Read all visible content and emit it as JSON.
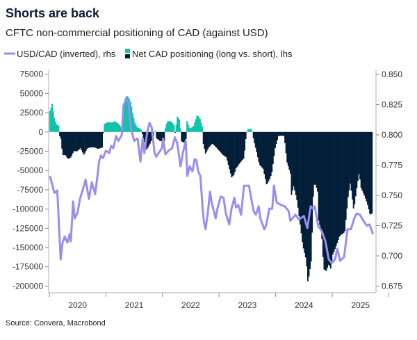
{
  "chart_data": {
    "type": "bar+line",
    "title": "Shorts are back",
    "subtitle": "CFTC non-commercial positioning of CAD (against USD)",
    "source": "Source: Convera, Macrobond",
    "x_axis": {
      "type": "time (decimal year)",
      "range": [
        2020.0,
        2025.8
      ],
      "tick_labels": [
        "2020",
        "2021",
        "2022",
        "2023",
        "2024",
        "2025"
      ]
    },
    "y_left": {
      "range": [
        -200000,
        75000
      ],
      "ticks": [
        75000,
        50000,
        25000,
        0,
        -25000,
        -50000,
        -75000,
        -100000,
        -125000,
        -150000,
        -175000,
        -200000
      ],
      "tick_labels": [
        "75000",
        "50000",
        "25000",
        "0",
        "-25000",
        "-50000",
        "-75000",
        "-100000",
        "-125000",
        "-150000",
        "-175000",
        "-200000"
      ]
    },
    "y_right": {
      "range": [
        0.675,
        0.85
      ],
      "ticks": [
        0.85,
        0.825,
        0.8,
        0.775,
        0.75,
        0.725,
        0.7,
        0.675
      ],
      "tick_labels": [
        "0.850",
        "0.825",
        "0.800",
        "0.775",
        "0.750",
        "0.725",
        "0.700",
        "0.675"
      ],
      "inverted_quantity": true
    },
    "grid": false,
    "legend_position": "top-left",
    "series": [
      {
        "name": "USD/CAD (inverted), rhs",
        "type": "line",
        "axis": "right",
        "color": "#9b8cf0",
        "points": [
          [
            2020.01,
            0.766
          ],
          [
            2020.09,
            0.752
          ],
          [
            2020.14,
            0.754
          ],
          [
            2020.15,
            0.745
          ],
          [
            2020.2,
            0.697
          ],
          [
            2020.23,
            0.71
          ],
          [
            2020.27,
            0.716
          ],
          [
            2020.32,
            0.711
          ],
          [
            2020.36,
            0.718
          ],
          [
            2020.38,
            0.712
          ],
          [
            2020.42,
            0.745
          ],
          [
            2020.45,
            0.731
          ],
          [
            2020.5,
            0.736
          ],
          [
            2020.54,
            0.747
          ],
          [
            2020.6,
            0.756
          ],
          [
            2020.64,
            0.763
          ],
          [
            2020.7,
            0.747
          ],
          [
            2020.75,
            0.761
          ],
          [
            2020.81,
            0.751
          ],
          [
            2020.85,
            0.766
          ],
          [
            2020.88,
            0.778
          ],
          [
            2020.91,
            0.783
          ],
          [
            2020.95,
            0.781
          ],
          [
            2021.0,
            0.787
          ],
          [
            2021.06,
            0.785
          ],
          [
            2021.09,
            0.791
          ],
          [
            2021.13,
            0.789
          ],
          [
            2021.18,
            0.799
          ],
          [
            2021.22,
            0.795
          ],
          [
            2021.28,
            0.8
          ],
          [
            2021.31,
            0.824
          ],
          [
            2021.36,
            0.83
          ],
          [
            2021.4,
            0.827
          ],
          [
            2021.44,
            0.806
          ],
          [
            2021.5,
            0.795
          ],
          [
            2021.56,
            0.797
          ],
          [
            2021.61,
            0.778
          ],
          [
            2021.65,
            0.797
          ],
          [
            2021.68,
            0.785
          ],
          [
            2021.73,
            0.802
          ],
          [
            2021.77,
            0.81
          ],
          [
            2021.81,
            0.806
          ],
          [
            2021.86,
            0.785
          ],
          [
            2021.89,
            0.782
          ],
          [
            2021.93,
            0.785
          ],
          [
            2021.99,
            0.789
          ],
          [
            2022.01,
            0.797
          ],
          [
            2022.05,
            0.784
          ],
          [
            2022.11,
            0.787
          ],
          [
            2022.17,
            0.789
          ],
          [
            2022.22,
            0.798
          ],
          [
            2022.26,
            0.793
          ],
          [
            2022.32,
            0.774
          ],
          [
            2022.36,
            0.785
          ],
          [
            2022.41,
            0.795
          ],
          [
            2022.44,
            0.766
          ],
          [
            2022.48,
            0.774
          ],
          [
            2022.53,
            0.77
          ],
          [
            2022.57,
            0.78
          ],
          [
            2022.6,
            0.779
          ],
          [
            2022.63,
            0.77
          ],
          [
            2022.67,
            0.766
          ],
          [
            2022.71,
            0.739
          ],
          [
            2022.73,
            0.729
          ],
          [
            2022.76,
            0.722
          ],
          [
            2022.8,
            0.735
          ],
          [
            2022.84,
            0.753
          ],
          [
            2022.87,
            0.744
          ],
          [
            2022.94,
            0.731
          ],
          [
            2022.97,
            0.739
          ],
          [
            2023.03,
            0.749
          ],
          [
            2023.08,
            0.748
          ],
          [
            2023.12,
            0.735
          ],
          [
            2023.18,
            0.726
          ],
          [
            2023.22,
            0.739
          ],
          [
            2023.27,
            0.748
          ],
          [
            2023.3,
            0.74
          ],
          [
            2023.34,
            0.742
          ],
          [
            2023.39,
            0.734
          ],
          [
            2023.44,
            0.758
          ],
          [
            2023.49,
            0.758
          ],
          [
            2023.53,
            0.758
          ],
          [
            2023.57,
            0.747
          ],
          [
            2023.61,
            0.737
          ],
          [
            2023.65,
            0.734
          ],
          [
            2023.7,
            0.741
          ],
          [
            2023.73,
            0.731
          ],
          [
            2023.8,
            0.722
          ],
          [
            2023.83,
            0.725
          ],
          [
            2023.89,
            0.739
          ],
          [
            2023.94,
            0.739
          ],
          [
            2023.97,
            0.758
          ],
          [
            2024.02,
            0.744
          ],
          [
            2024.1,
            0.742
          ],
          [
            2024.16,
            0.741
          ],
          [
            2024.23,
            0.737
          ],
          [
            2024.26,
            0.729
          ],
          [
            2024.35,
            0.734
          ],
          [
            2024.41,
            0.73
          ],
          [
            2024.5,
            0.733
          ],
          [
            2024.56,
            0.723
          ],
          [
            2024.62,
            0.741
          ],
          [
            2024.66,
            0.739
          ],
          [
            2024.69,
            0.741
          ],
          [
            2024.75,
            0.725
          ],
          [
            2024.82,
            0.72
          ],
          [
            2024.88,
            0.712
          ],
          [
            2024.94,
            0.697
          ],
          [
            2024.99,
            0.694
          ],
          [
            2025.05,
            0.697
          ],
          [
            2025.09,
            0.706
          ],
          [
            2025.14,
            0.696
          ],
          [
            2025.21,
            0.699
          ],
          [
            2025.27,
            0.722
          ],
          [
            2025.33,
            0.722
          ],
          [
            2025.39,
            0.731
          ],
          [
            2025.43,
            0.735
          ],
          [
            2025.49,
            0.734
          ],
          [
            2025.55,
            0.729
          ],
          [
            2025.61,
            0.725
          ],
          [
            2025.66,
            0.726
          ],
          [
            2025.72,
            0.718
          ]
        ]
      },
      {
        "name": "Net CAD positioning (long vs. short), lhs",
        "type": "bar",
        "axis": "left",
        "color_positive": "#10c3a8",
        "color_negative": "#021e38",
        "points": [
          [
            2020.0,
            27000
          ],
          [
            2020.04,
            37000
          ],
          [
            2020.07,
            20000
          ],
          [
            2020.11,
            10000
          ],
          [
            2020.16,
            8000
          ],
          [
            2020.17,
            -5000
          ],
          [
            2020.2,
            -10000
          ],
          [
            2020.22,
            -30000
          ],
          [
            2020.27,
            -30000
          ],
          [
            2020.32,
            -35000
          ],
          [
            2020.37,
            -33000
          ],
          [
            2020.42,
            -25000
          ],
          [
            2020.48,
            -25000
          ],
          [
            2020.54,
            -21000
          ],
          [
            2020.6,
            -30000
          ],
          [
            2020.66,
            -21000
          ],
          [
            2020.72,
            -20000
          ],
          [
            2020.79,
            -20000
          ],
          [
            2020.85,
            -22000
          ],
          [
            2020.93,
            -20000
          ],
          [
            2020.95,
            10000
          ],
          [
            2021.03,
            13000
          ],
          [
            2021.09,
            12000
          ],
          [
            2021.15,
            14000
          ],
          [
            2021.22,
            10000
          ],
          [
            2021.27,
            5000
          ],
          [
            2021.29,
            20000
          ],
          [
            2021.31,
            40000
          ],
          [
            2021.35,
            47000
          ],
          [
            2021.39,
            45000
          ],
          [
            2021.43,
            38000
          ],
          [
            2021.46,
            25000
          ],
          [
            2021.5,
            12000
          ],
          [
            2021.54,
            6000
          ],
          [
            2021.61,
            4000
          ],
          [
            2021.66,
            -10000
          ],
          [
            2021.71,
            -23000
          ],
          [
            2021.77,
            -15000
          ],
          [
            2021.83,
            -5000
          ],
          [
            2021.86,
            5000
          ],
          [
            2021.88,
            -8000
          ],
          [
            2021.95,
            -12000
          ],
          [
            2022.03,
            -12000
          ],
          [
            2022.04,
            8000
          ],
          [
            2022.08,
            14000
          ],
          [
            2022.13,
            14000
          ],
          [
            2022.19,
            10000
          ],
          [
            2022.21,
            -2000
          ],
          [
            2022.25,
            20000
          ],
          [
            2022.3,
            15000
          ],
          [
            2022.32,
            -12000
          ],
          [
            2022.4,
            -15000
          ],
          [
            2022.42,
            15000
          ],
          [
            2022.47,
            4000
          ],
          [
            2022.54,
            8000
          ],
          [
            2022.6,
            22000
          ],
          [
            2022.65,
            18000
          ],
          [
            2022.7,
            5000
          ],
          [
            2022.71,
            -15000
          ],
          [
            2022.75,
            -28000
          ],
          [
            2022.81,
            -20000
          ],
          [
            2022.87,
            -15000
          ],
          [
            2022.94,
            -20000
          ],
          [
            2023.0,
            -25000
          ],
          [
            2023.06,
            -30000
          ],
          [
            2023.12,
            -33000
          ],
          [
            2023.21,
            -59000
          ],
          [
            2023.26,
            -55000
          ],
          [
            2023.28,
            -48000
          ],
          [
            2023.37,
            -39000
          ],
          [
            2023.43,
            -34000
          ],
          [
            2023.46,
            -10000
          ],
          [
            2023.49,
            4000
          ],
          [
            2023.57,
            4000
          ],
          [
            2023.6,
            -10000
          ],
          [
            2023.65,
            -25000
          ],
          [
            2023.7,
            -42000
          ],
          [
            2023.77,
            -48000
          ],
          [
            2023.83,
            -69000
          ],
          [
            2023.89,
            -60000
          ],
          [
            2023.92,
            -54000
          ],
          [
            2023.98,
            -21000
          ],
          [
            2024.04,
            -5000
          ],
          [
            2024.14,
            -5000
          ],
          [
            2024.19,
            -39000
          ],
          [
            2024.25,
            -54000
          ],
          [
            2024.26,
            -84000
          ],
          [
            2024.31,
            -70000
          ],
          [
            2024.37,
            -90000
          ],
          [
            2024.43,
            -124000
          ],
          [
            2024.47,
            -148000
          ],
          [
            2024.53,
            -166000
          ],
          [
            2024.56,
            -196000
          ],
          [
            2024.59,
            -181000
          ],
          [
            2024.62,
            -166000
          ],
          [
            2024.66,
            -69000
          ],
          [
            2024.69,
            -68000
          ],
          [
            2024.73,
            -76000
          ],
          [
            2024.75,
            -115000
          ],
          [
            2024.8,
            -130000
          ],
          [
            2024.84,
            -178000
          ],
          [
            2024.88,
            -181000
          ],
          [
            2024.93,
            -171000
          ],
          [
            2024.96,
            -178000
          ],
          [
            2025.0,
            -159000
          ],
          [
            2025.06,
            -148000
          ],
          [
            2025.12,
            -135000
          ],
          [
            2025.21,
            -130000
          ],
          [
            2025.27,
            -84000
          ],
          [
            2025.31,
            -66000
          ],
          [
            2025.37,
            -102000
          ],
          [
            2025.43,
            -69000
          ],
          [
            2025.47,
            -51000
          ],
          [
            2025.49,
            -71000
          ],
          [
            2025.55,
            -81000
          ],
          [
            2025.61,
            -93000
          ],
          [
            2025.66,
            -108000
          ],
          [
            2025.7,
            -105000
          ]
        ]
      }
    ]
  }
}
